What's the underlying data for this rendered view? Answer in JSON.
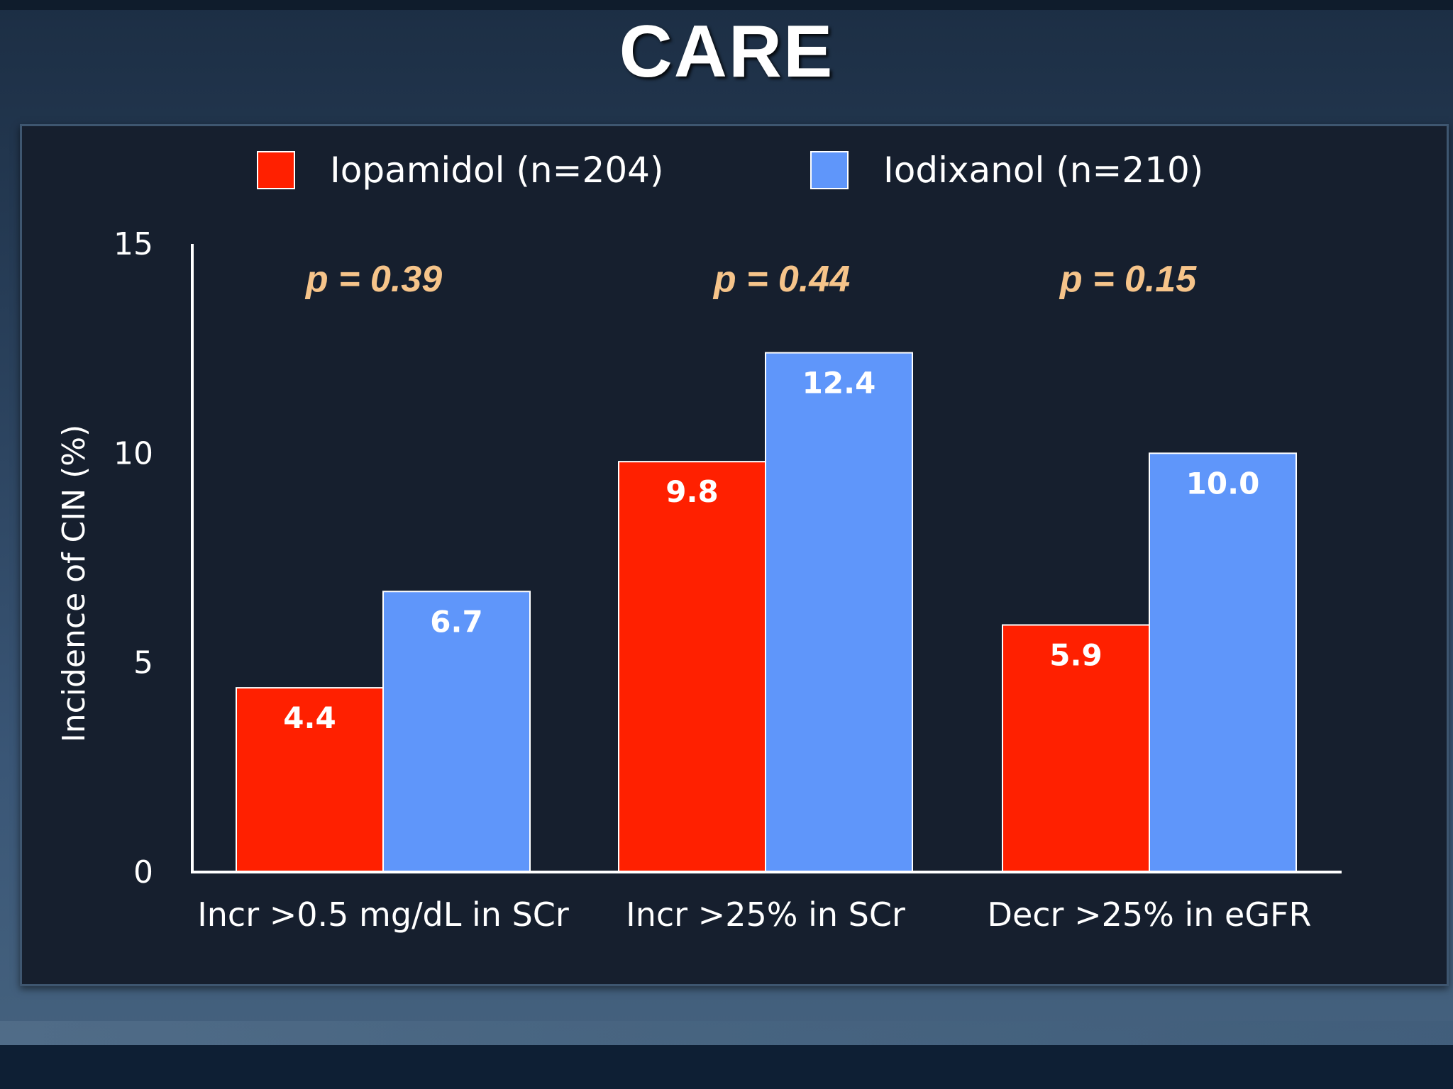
{
  "slide": {
    "title": "CARE"
  },
  "colors": {
    "series_1": "#ff2000",
    "series_2": "#5f96fa",
    "p_value_text": "#f6c48a",
    "panel_background": "#161f2e"
  },
  "chart_data": {
    "type": "bar",
    "title": "",
    "xlabel": "",
    "ylabel": "Incidence of CIN (%)",
    "ylim": [
      0,
      15
    ],
    "yticks": [
      0,
      5,
      10,
      15
    ],
    "grid": false,
    "legend_position": "top",
    "categories": [
      "Incr >0.5 mg/dL in SCr",
      "Incr >25% in SCr",
      "Decr >25% in eGFR"
    ],
    "series": [
      {
        "name": "Iopamidol (n=204)",
        "values": [
          4.4,
          9.8,
          5.9
        ],
        "value_labels": [
          "4.4",
          "9.8",
          "5.9"
        ]
      },
      {
        "name": "Iodixanol (n=210)",
        "values": [
          6.7,
          12.4,
          10.0
        ],
        "value_labels": [
          "6.7",
          "12.4",
          "10.0"
        ]
      }
    ],
    "annotations": [
      "p = 0.39",
      "p = 0.44",
      "p = 0.15"
    ]
  }
}
